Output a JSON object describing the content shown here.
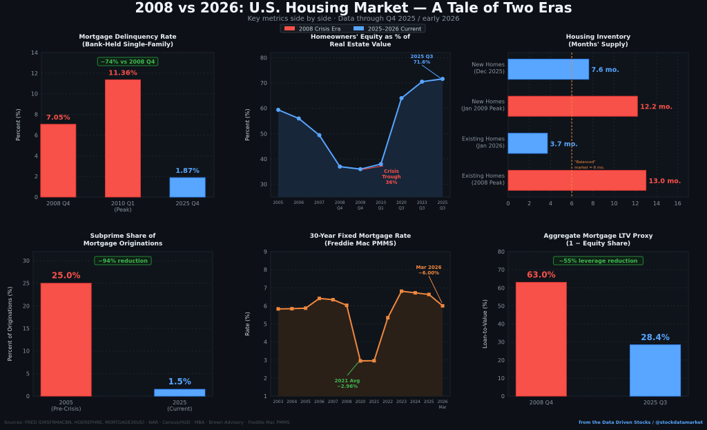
{
  "header": {
    "title": "2008 vs 2026: U.S. Housing Market — A Tale of Two Eras",
    "subtitle": "Key metrics side by side  ·  Data through Q4 2025 / early 2026"
  },
  "legend": {
    "placement": "top-center",
    "items": [
      {
        "label": "2008 Crisis Era",
        "color": "#f85149"
      },
      {
        "label": "2025–2026 Current",
        "color": "#58a6ff"
      }
    ]
  },
  "colors": {
    "crisis": "#f85149",
    "current": "#58a6ff",
    "rate": "#f0883e",
    "good": "#3fb950",
    "background": "#0d1117"
  },
  "chart_data": [
    {
      "type": "bar",
      "title": [
        "Mortgage Delinquency Rate",
        "(Bank-Held Single-Family)"
      ],
      "ylabel": "Percent (%)",
      "ylim": [
        0,
        14
      ],
      "yticks": [
        "0",
        "2",
        "4",
        "6",
        "8",
        "10",
        "12",
        "14"
      ],
      "categories": [
        [
          "2008 Q4"
        ],
        [
          "2010 Q1",
          "(Peak)"
        ],
        [
          "2025 Q4"
        ]
      ],
      "values": [
        7.05,
        11.36,
        1.87
      ],
      "data_labels": [
        "7.05%",
        "11.36%",
        "1.87%"
      ],
      "bar_colors": [
        "#f85149",
        "#f85149",
        "#58a6ff"
      ],
      "annotation": "−74% vs 2008 Q4",
      "grid": true
    },
    {
      "type": "area",
      "title": [
        "Homeowners' Equity as % of",
        "Real Estate Value"
      ],
      "ylabel": "Percent (%)",
      "ylim": [
        25,
        82
      ],
      "yticks": [
        "30",
        "40",
        "50",
        "60",
        "70",
        "80"
      ],
      "categories": [
        [
          "2005"
        ],
        [
          "2006"
        ],
        [
          "2007"
        ],
        [
          "2008",
          "Q4"
        ],
        [
          "2009",
          "Q4"
        ],
        [
          "2010",
          "Q1"
        ],
        [
          "2020",
          "Q3"
        ],
        [
          "2023",
          "Q3"
        ],
        [
          "2025",
          "Q3"
        ]
      ],
      "values": [
        59.4,
        56.0,
        49.4,
        37.0,
        36.0,
        38.0,
        64.0,
        70.5,
        71.6
      ],
      "color": "#58a6ff",
      "annotations": [
        {
          "lines": [
            "2025 Q3",
            "71.6%"
          ],
          "color": "#58a6ff"
        },
        {
          "lines": [
            "Crisis",
            "Trough",
            "36%"
          ],
          "color": "#f85149"
        }
      ],
      "grid": true
    },
    {
      "type": "bar",
      "orientation": "horizontal",
      "title": [
        "Housing Inventory",
        "(Months' Supply)"
      ],
      "xlim": [
        0,
        17
      ],
      "xticks": [
        "0",
        "2",
        "4",
        "6",
        "8",
        "10",
        "12",
        "14",
        "16"
      ],
      "categories": [
        [
          "New Homes",
          "(Dec 2025)"
        ],
        [
          "New Homes",
          "(Jan 2009 Peak)"
        ],
        [
          "Existing Homes",
          "(Jan 2026)"
        ],
        [
          "Existing Homes",
          "(2008 Peak)"
        ]
      ],
      "values": [
        7.6,
        12.2,
        3.7,
        13.0
      ],
      "data_labels": [
        "7.6 mo.",
        "12.2 mo.",
        "3.7 mo.",
        "13.0 mo."
      ],
      "bar_colors": [
        "#58a6ff",
        "#f85149",
        "#58a6ff",
        "#f85149"
      ],
      "reference_line": {
        "value": 6,
        "label": [
          "\"Balanced\"",
          "market = 6 mo."
        ]
      },
      "grid": true
    },
    {
      "type": "bar",
      "title": [
        "Subprime Share of",
        "Mortgage Originations"
      ],
      "ylabel": "Percent of Originations (%)",
      "ylim": [
        0,
        32
      ],
      "yticks": [
        "0",
        "5",
        "10",
        "15",
        "20",
        "25",
        "30"
      ],
      "categories": [
        [
          "2005",
          "(Pre-Crisis)"
        ],
        [
          "2025",
          "(Current)"
        ]
      ],
      "values": [
        25.0,
        1.5
      ],
      "data_labels": [
        "25.0%",
        "1.5%"
      ],
      "bar_colors": [
        "#f85149",
        "#58a6ff"
      ],
      "annotation": "−94% reduction",
      "grid": true
    },
    {
      "type": "area",
      "title": [
        "30-Year Fixed Mortgage Rate",
        "(Freddie Mac PMMS)"
      ],
      "ylabel": "Rate (%)",
      "ylim": [
        1,
        9
      ],
      "yticks": [
        "1",
        "2",
        "3",
        "4",
        "5",
        "6",
        "7",
        "8",
        "9"
      ],
      "categories": [
        [
          "2003"
        ],
        [
          "2004"
        ],
        [
          "2005"
        ],
        [
          "2006"
        ],
        [
          "2007"
        ],
        [
          "2008"
        ],
        [
          "2020"
        ],
        [
          "2021"
        ],
        [
          "2022"
        ],
        [
          "2023"
        ],
        [
          "2024"
        ],
        [
          "2025"
        ],
        [
          "2026",
          "Mar"
        ]
      ],
      "values": [
        5.83,
        5.84,
        5.87,
        6.41,
        6.34,
        6.03,
        2.95,
        2.96,
        5.34,
        6.81,
        6.72,
        6.63,
        6.0
      ],
      "color": "#f0883e",
      "annotations": [
        {
          "lines": [
            "Mar 2026",
            "~6.00%"
          ],
          "color": "#f0883e"
        },
        {
          "lines": [
            "2021 Avg",
            "~2.96%"
          ],
          "color": "#3fb950"
        }
      ],
      "grid": true
    },
    {
      "type": "bar",
      "title": [
        "Aggregate Mortgage LTV Proxy",
        "(1 − Equity Share)"
      ],
      "ylabel": "Loan-to-Value (%)",
      "ylim": [
        0,
        80
      ],
      "yticks": [
        "0",
        "10",
        "20",
        "30",
        "40",
        "50",
        "60",
        "70",
        "80"
      ],
      "categories": [
        [
          "2008 Q4"
        ],
        [
          "2025 Q3"
        ]
      ],
      "values": [
        63.0,
        28.4
      ],
      "data_labels": [
        "63.0%",
        "28.4%"
      ],
      "bar_colors": [
        "#f85149",
        "#58a6ff"
      ],
      "annotation": "−55% leverage reduction",
      "grid": true
    }
  ],
  "footer": {
    "sources": "Sources: FRED (DRSFRMACBN, HOEREPHRE, MORTGAGE30US) · NAR · Census/HUD · MBA · Brown Advisory · Freddie Mac PMMS",
    "credit": "from the Data Driven Stocks / @stockdatamarket"
  }
}
